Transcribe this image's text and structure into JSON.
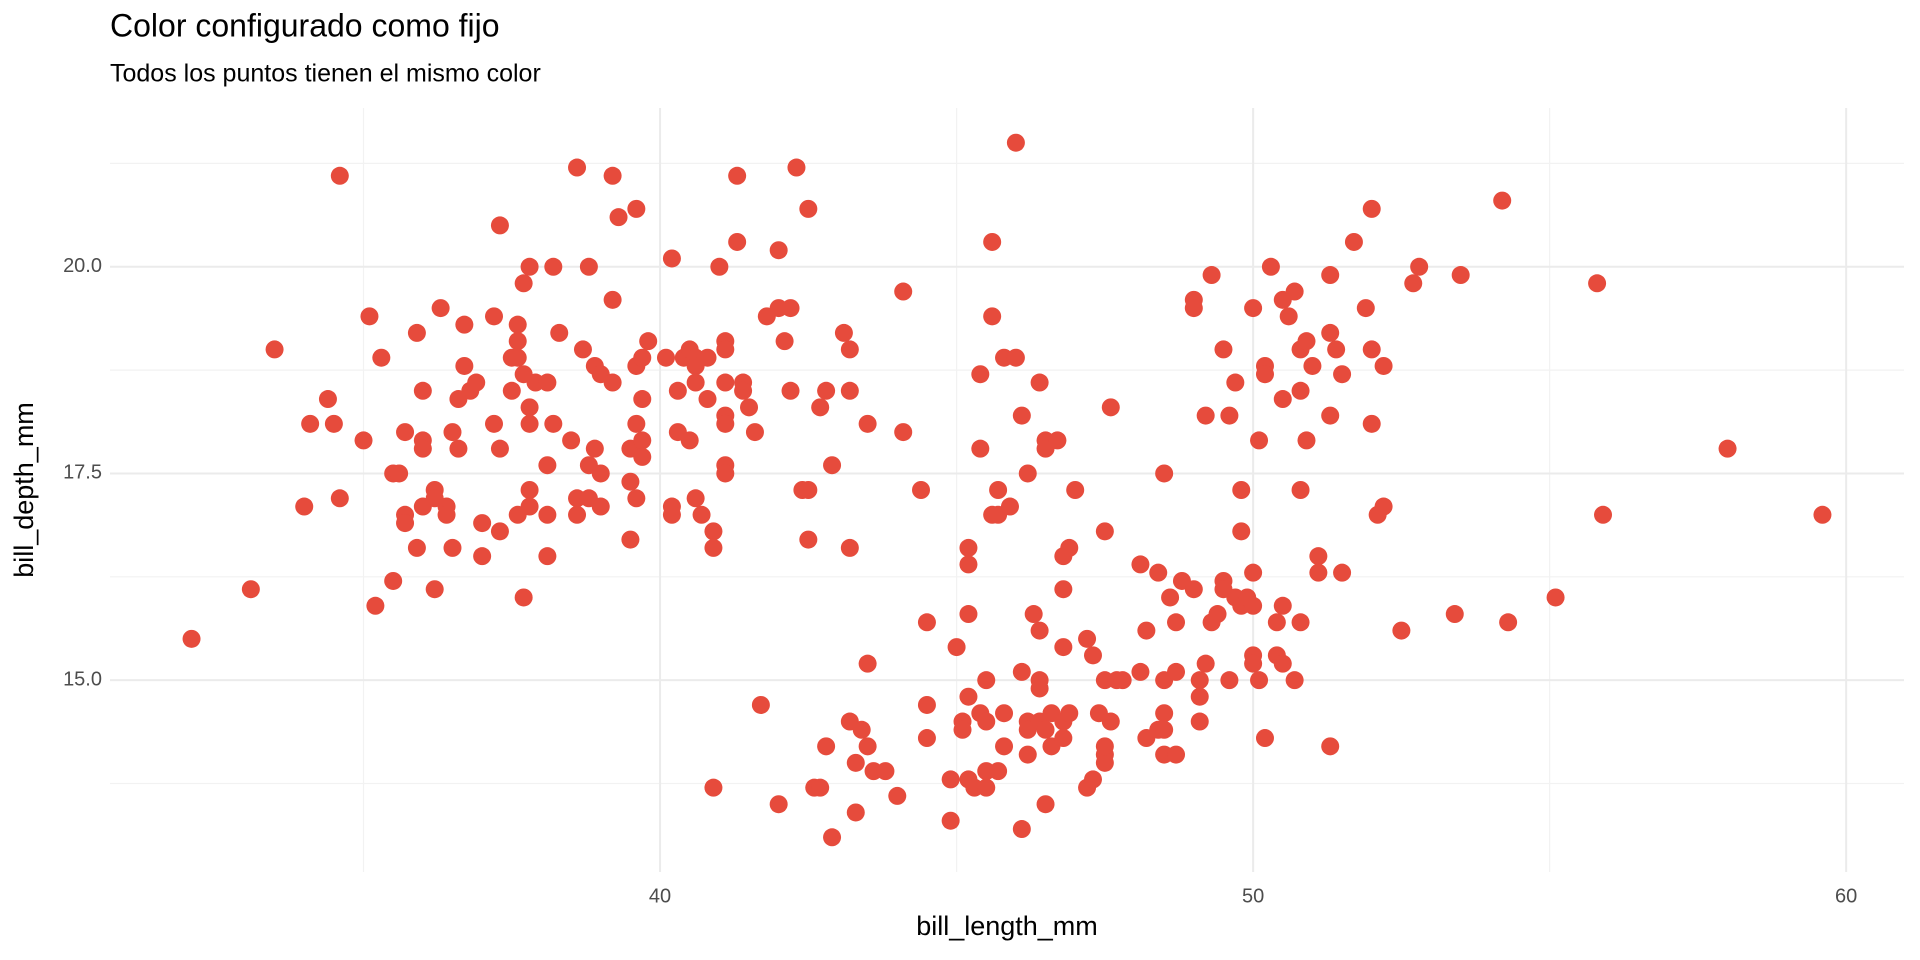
{
  "chart_data": {
    "type": "scatter",
    "title": "Color configurado como fijo",
    "subtitle": "Todos los puntos tienen el mismo color",
    "x_label": "bill_length_mm",
    "y_label": "bill_depth_mm",
    "color": "#e64b3c",
    "grid": true,
    "xlim": [
      30.725,
      60.975
    ],
    "ylim": [
      12.68,
      21.92
    ],
    "xticks": [
      40,
      50,
      60
    ],
    "yticks": [
      {
        "value": 15,
        "label": "15.0"
      },
      {
        "value": 17.5,
        "label": "17.5"
      },
      {
        "value": 20,
        "label": "20.0"
      }
    ],
    "x_minor_grid": [
      35,
      45,
      55
    ],
    "y_minor_grid": [
      13.75,
      16.25,
      18.75,
      21.25
    ],
    "x": [
      32.1,
      33.1,
      33.5,
      34.1,
      34.0,
      34.4,
      34.5,
      34.6,
      34.6,
      35.0,
      35.1,
      35.2,
      35.3,
      35.5,
      35.5,
      35.6,
      35.7,
      35.7,
      35.7,
      35.9,
      36.0,
      36.0,
      36.0,
      35.9,
      36.0,
      36.2,
      36.2,
      36.2,
      36.3,
      36.4,
      36.4,
      36.5,
      36.5,
      36.6,
      36.6,
      36.7,
      36.7,
      36.8,
      36.9,
      37.0,
      37.0,
      37.2,
      37.2,
      37.3,
      37.3,
      37.3,
      37.5,
      37.5,
      37.6,
      37.6,
      37.6,
      37.6,
      37.7,
      37.7,
      37.7,
      37.8,
      37.8,
      37.8,
      37.8,
      37.8,
      37.9,
      38.1,
      38.1,
      38.1,
      38.1,
      38.2,
      38.2,
      38.3,
      38.5,
      38.6,
      38.6,
      38.6,
      38.7,
      38.8,
      38.8,
      38.8,
      38.9,
      38.9,
      39.0,
      39.0,
      39.0,
      39.2,
      39.2,
      39.2,
      39.3,
      39.5,
      39.5,
      39.6,
      39.5,
      39.6,
      39.6,
      39.6,
      39.6,
      39.7,
      39.7,
      39.7,
      39.7,
      39.8,
      40.1,
      40.2,
      40.2,
      40.2,
      40.3,
      40.3,
      40.4,
      40.5,
      40.5,
      40.6,
      40.6,
      40.6,
      40.6,
      40.7,
      40.8,
      40.8,
      40.9,
      40.9,
      40.9,
      41.0,
      41.1,
      41.1,
      41.1,
      41.1,
      41.1,
      41.1,
      41.1,
      41.3,
      41.3,
      41.4,
      41.4,
      41.5,
      41.6,
      41.7,
      41.8,
      42.0,
      42.0,
      42.2,
      42.1,
      42.2,
      42.3,
      42.4,
      42.5,
      42.5,
      42.5,
      42.7,
      42.8,
      42.9,
      43.1,
      43.2,
      43.2,
      43.2,
      43.5,
      44.1,
      44.1,
      44.4,
      42.0,
      42.8,
      42.9,
      42.6,
      42.7,
      43.2,
      43.3,
      43.4,
      43.5,
      43.5,
      43.3,
      43.6,
      43.8,
      44.0,
      44.5,
      44.5,
      44.5,
      44.9,
      44.9,
      45.0,
      45.1,
      45.1,
      45.2,
      45.2,
      45.2,
      45.2,
      45.2,
      45.3,
      45.4,
      45.4,
      45.4,
      45.5,
      45.5,
      45.5,
      45.5,
      45.6,
      45.6,
      45.6,
      45.7,
      45.7,
      45.7,
      45.8,
      46.0,
      45.8,
      45.8,
      45.9,
      46.0,
      46.1,
      46.1,
      46.1,
      46.2,
      46.2,
      46.2,
      46.2,
      46.3,
      46.4,
      46.4,
      46.4,
      46.4,
      46.4,
      46.5,
      46.5,
      46.5,
      46.5,
      46.6,
      46.6,
      46.7,
      46.8,
      46.8,
      46.8,
      46.8,
      46.9,
      46.8,
      46.9,
      47.0,
      47.2,
      47.3,
      47.2,
      47.3,
      47.4,
      47.5,
      47.5,
      47.5,
      47.5,
      47.5,
      47.6,
      47.6,
      47.7,
      47.8,
      48.1,
      48.1,
      48.2,
      48.2,
      48.4,
      48.4,
      48.5,
      48.5,
      48.5,
      48.5,
      48.7,
      48.5,
      48.6,
      48.7,
      48.7,
      48.8,
      49.0,
      49.0,
      49.0,
      49.1,
      49.1,
      49.1,
      49.2,
      49.2,
      49.3,
      49.3,
      49.4,
      49.5,
      49.5,
      49.5,
      49.6,
      49.6,
      49.7,
      49.7,
      49.8,
      49.8,
      49.8,
      49.9,
      50.0,
      50.0,
      50.0,
      50.0,
      50.0,
      50.1,
      50.1,
      50.2,
      50.2,
      50.2,
      50.3,
      50.4,
      50.4,
      50.5,
      50.5,
      50.5,
      50.5,
      50.6,
      50.7,
      50.7,
      50.8,
      50.8,
      50.8,
      50.8,
      50.9,
      50.9,
      51.0,
      51.1,
      51.1,
      51.3,
      51.3,
      51.3,
      51.3,
      51.4,
      51.5,
      51.5,
      51.7,
      51.9,
      52.0,
      52.0,
      52.0,
      52.1,
      52.2,
      52.2,
      52.5,
      52.7,
      52.8,
      53.4,
      53.5,
      54.2,
      54.3,
      55.1,
      55.8,
      55.9,
      58.0,
      59.6
    ],
    "values": [
      15.5,
      16.1,
      19.0,
      18.1,
      17.1,
      18.4,
      18.1,
      21.1,
      17.2,
      17.9,
      19.4,
      15.9,
      18.9,
      16.2,
      17.5,
      17.5,
      18.0,
      17.0,
      16.9,
      19.2,
      17.9,
      17.8,
      18.5,
      16.6,
      17.1,
      16.1,
      17.3,
      17.2,
      19.5,
      17.1,
      17.0,
      16.6,
      18.0,
      18.4,
      17.8,
      19.3,
      18.8,
      18.5,
      18.6,
      16.9,
      16.5,
      18.1,
      19.4,
      20.5,
      17.8,
      16.8,
      18.5,
      18.9,
      19.3,
      19.1,
      18.9,
      17.0,
      19.8,
      16.0,
      18.7,
      20.0,
      18.3,
      18.1,
      17.3,
      17.1,
      18.6,
      18.6,
      17.6,
      17.0,
      16.5,
      20.0,
      18.1,
      19.2,
      17.9,
      21.2,
      17.2,
      17.0,
      19.0,
      20.0,
      17.6,
      17.2,
      17.8,
      18.8,
      17.5,
      18.7,
      17.1,
      21.1,
      19.6,
      18.6,
      20.6,
      17.4,
      17.8,
      17.8,
      16.7,
      20.7,
      18.8,
      18.1,
      17.2,
      18.9,
      17.9,
      17.7,
      18.4,
      19.1,
      18.9,
      20.1,
      17.0,
      17.1,
      18.5,
      18.0,
      18.9,
      17.9,
      19.0,
      18.9,
      18.8,
      18.6,
      17.2,
      17.0,
      18.4,
      18.9,
      16.8,
      16.6,
      13.7,
      20.0,
      19.1,
      19.0,
      18.6,
      18.2,
      18.1,
      17.6,
      17.5,
      21.1,
      20.3,
      18.6,
      18.5,
      18.3,
      18.0,
      14.7,
      19.4,
      20.2,
      19.5,
      19.5,
      19.1,
      18.5,
      21.2,
      17.3,
      17.3,
      20.7,
      16.7,
      18.3,
      18.5,
      17.6,
      19.2,
      19.0,
      18.5,
      16.6,
      18.1,
      19.7,
      18.0,
      17.3,
      13.5,
      14.2,
      13.1,
      13.7,
      13.7,
      14.5,
      14.0,
      14.4,
      14.2,
      15.2,
      13.4,
      13.9,
      13.9,
      13.6,
      15.7,
      14.7,
      14.3,
      13.3,
      13.8,
      15.4,
      14.5,
      14.4,
      16.6,
      16.4,
      15.8,
      14.8,
      13.8,
      13.7,
      14.6,
      17.8,
      18.7,
      15.0,
      14.5,
      13.9,
      13.7,
      20.3,
      19.4,
      17.0,
      17.0,
      17.3,
      13.9,
      18.9,
      18.9,
      14.6,
      14.2,
      17.1,
      21.5,
      18.2,
      15.1,
      13.2,
      17.5,
      14.5,
      14.4,
      14.1,
      15.8,
      18.6,
      15.6,
      15.0,
      14.9,
      14.5,
      14.4,
      17.9,
      17.8,
      13.5,
      14.6,
      14.2,
      17.9,
      15.4,
      14.5,
      14.3,
      16.5,
      16.6,
      16.1,
      14.6,
      17.3,
      15.5,
      15.3,
      13.7,
      13.8,
      14.6,
      15.0,
      14.1,
      14.0,
      14.2,
      16.8,
      18.3,
      14.5,
      15.0,
      15.0,
      15.1,
      16.4,
      15.6,
      14.3,
      14.4,
      16.3,
      14.6,
      14.4,
      17.5,
      14.1,
      14.1,
      15.0,
      16.0,
      15.7,
      15.1,
      16.2,
      16.1,
      19.6,
      19.5,
      15.0,
      14.8,
      14.5,
      18.2,
      15.2,
      19.9,
      15.7,
      15.8,
      19.0,
      16.2,
      16.1,
      18.2,
      15.0,
      18.6,
      16.0,
      17.3,
      16.8,
      15.9,
      16.0,
      19.5,
      16.3,
      15.9,
      15.3,
      15.2,
      17.9,
      15.0,
      18.8,
      18.7,
      14.3,
      20.0,
      15.7,
      15.3,
      19.6,
      18.4,
      15.9,
      15.2,
      19.4,
      19.7,
      15.0,
      18.5,
      19.0,
      17.3,
      15.7,
      19.1,
      17.9,
      18.8,
      16.5,
      16.3,
      19.9,
      19.2,
      18.2,
      14.2,
      19.0,
      18.7,
      16.3,
      20.3,
      19.5,
      20.7,
      19.0,
      18.1,
      17.0,
      18.8,
      17.1,
      15.6,
      19.8,
      20.0,
      15.8,
      19.9,
      20.8,
      15.7,
      16.0,
      19.8,
      17.0,
      17.8,
      17.0
    ]
  }
}
